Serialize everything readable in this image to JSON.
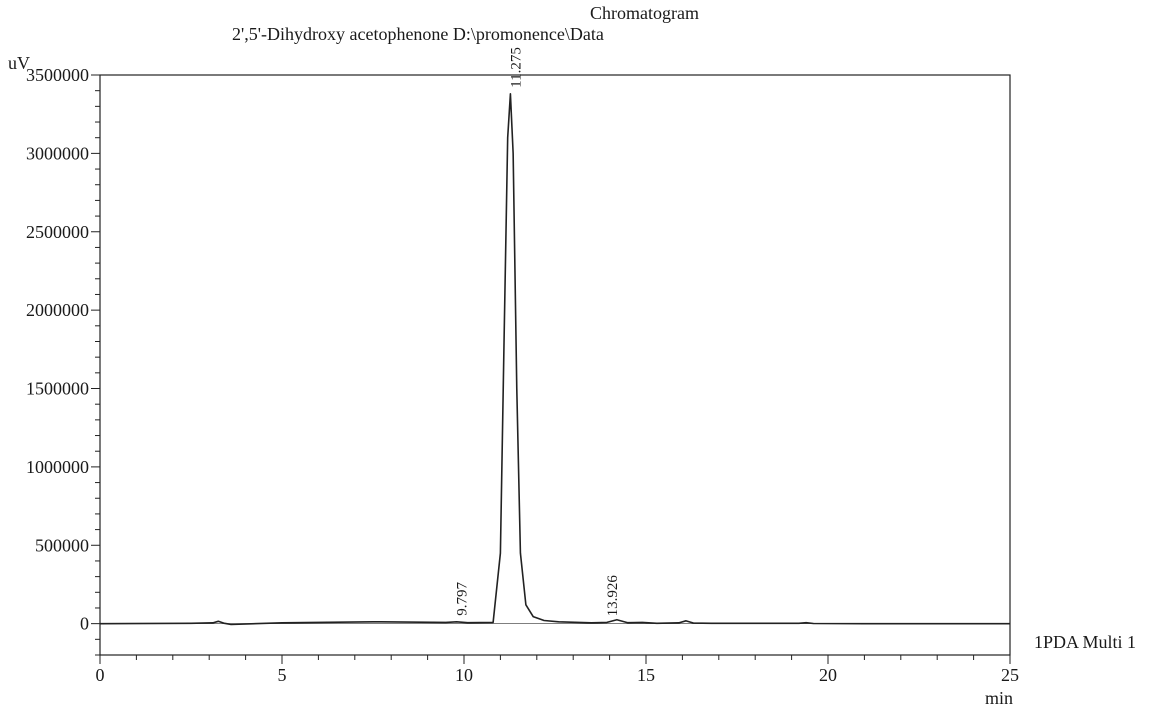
{
  "chart_data": {
    "type": "line",
    "title": "Chromatogram",
    "subtitle": "2',5'-Dihydroxy acetophenone D:\\promonence\\Data",
    "xlabel": "min",
    "ylabel": "uV",
    "xlim": [
      0,
      25
    ],
    "ylim": [
      -200000,
      3500000
    ],
    "x_ticks": [
      0,
      5,
      10,
      15,
      20,
      25
    ],
    "y_ticks": [
      0,
      500000,
      1000000,
      1500000,
      2000000,
      2500000,
      3000000,
      3500000
    ],
    "grid": false,
    "legend_position": "right",
    "series": [
      {
        "name": "1PDA Multi 1",
        "x": [
          0,
          2.5,
          3.1,
          3.25,
          3.4,
          3.6,
          5,
          7.5,
          9.5,
          9.797,
          10.1,
          10.8,
          11.0,
          11.1,
          11.2,
          11.275,
          11.35,
          11.45,
          11.55,
          11.7,
          11.9,
          12.2,
          12.6,
          13.5,
          13.926,
          14.2,
          14.5,
          14.9,
          15.3,
          15.9,
          16.1,
          16.3,
          16.8,
          19.2,
          19.4,
          19.6,
          21,
          25
        ],
        "y": [
          0,
          2000,
          5000,
          15000,
          3000,
          -5000,
          5000,
          12000,
          8000,
          12000,
          6000,
          8000,
          450000,
          1800000,
          3100000,
          3380000,
          3000000,
          1500000,
          450000,
          120000,
          45000,
          20000,
          12000,
          5000,
          8000,
          25000,
          6000,
          8000,
          2000,
          5000,
          18000,
          4000,
          2000,
          2000,
          6000,
          1000,
          0,
          0
        ]
      }
    ],
    "annotations": [
      {
        "x": 9.797,
        "y": 12000,
        "text": "9.797"
      },
      {
        "x": 11.275,
        "y": 3380000,
        "text": "11.275"
      },
      {
        "x": 13.926,
        "y": 8000,
        "text": "13.926"
      }
    ]
  }
}
